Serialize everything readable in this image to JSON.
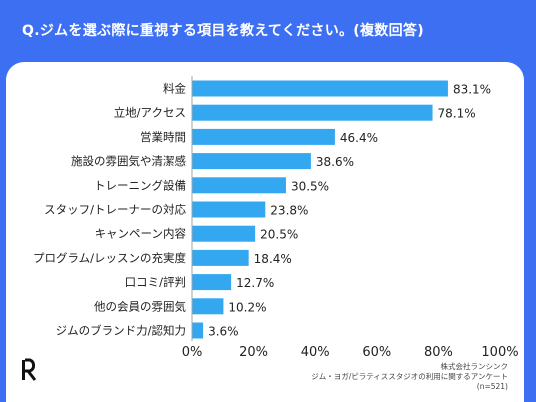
{
  "question": "Q.ジムを選ぶ際に重視する項目を教えてください。(複数回答)",
  "source": {
    "company": "株式会社ランシンク",
    "survey": "ジム・ヨガ/ピラティススタジオの利用に関するアンケート",
    "n": "(n=521)"
  },
  "chart_data": {
    "type": "bar",
    "orientation": "horizontal",
    "title": "",
    "xlabel": "",
    "ylabel": "",
    "xlim": [
      0,
      100
    ],
    "tick_labels": [
      "0%",
      "20%",
      "40%",
      "60%",
      "80%",
      "100%"
    ],
    "categories": [
      "料金",
      "立地/アクセス",
      "営業時間",
      "施設の雰囲気や清潔感",
      "トレーニング設備",
      "スタッフ/トレーナーの対応",
      "キャンペーン内容",
      "プログラム/レッスンの充実度",
      "口コミ/評判",
      "他の会員の雰囲気",
      "ジムのブランド力/認知力"
    ],
    "values": [
      83.1,
      78.1,
      46.4,
      38.6,
      30.5,
      23.8,
      20.5,
      18.4,
      12.7,
      10.2,
      3.6
    ],
    "value_labels": [
      "83.1%",
      "78.1%",
      "46.4%",
      "38.6%",
      "30.5%",
      "23.8%",
      "20.5%",
      "18.4%",
      "12.7%",
      "10.2%",
      "3.6%"
    ],
    "bar_color": "#33a7f0",
    "grid": false
  }
}
